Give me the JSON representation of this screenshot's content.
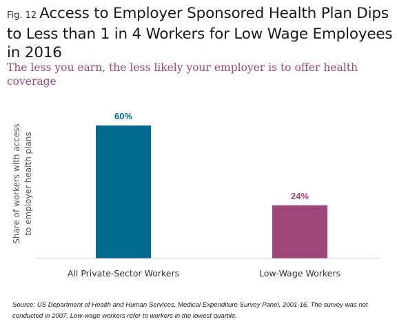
{
  "header": {
    "fig_label": "Fig. 12",
    "title": "Access to Employer Sponsored Health Plan Dips to Less than 1 in 4 Workers for Low Wage Employees in 2016",
    "subtitle": "The less you earn, the less likely your employer is to offer health coverage"
  },
  "chart_data": {
    "type": "bar",
    "categories": [
      "All Private-Sector Workers",
      "Low-Wage Workers"
    ],
    "values": [
      60,
      24
    ],
    "data_labels": [
      "60%",
      "24%"
    ],
    "colors": [
      "#006a8e",
      "#a0477a"
    ],
    "ylabel": "Share of workers with access to employer health plans",
    "ylabel_lines": [
      "Share of workers with access",
      "to employer health plans"
    ],
    "xlabel": "",
    "ylim": [
      0,
      70
    ],
    "grid": false,
    "legend": "none"
  },
  "footer": {
    "source": "Source: US Department of Health and Human Services, Medical Expenditure Survey Panel, 2001-16. The survey was not conducted in 2007. Low-wage workers refer to workers in the lowest quartile."
  }
}
